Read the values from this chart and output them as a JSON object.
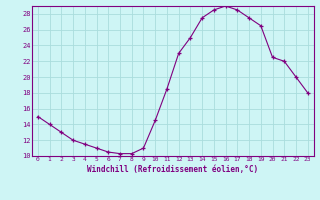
{
  "x": [
    0,
    1,
    2,
    3,
    4,
    5,
    6,
    7,
    8,
    9,
    10,
    11,
    12,
    13,
    14,
    15,
    16,
    17,
    18,
    19,
    20,
    21,
    22,
    23
  ],
  "y": [
    15.0,
    14.0,
    13.0,
    12.0,
    11.5,
    11.0,
    10.5,
    10.3,
    10.3,
    11.0,
    14.5,
    18.5,
    23.0,
    25.0,
    27.5,
    28.5,
    29.0,
    28.5,
    27.5,
    26.5,
    22.5,
    22.0,
    20.0,
    18.0
  ],
  "xlim": [
    -0.5,
    23.5
  ],
  "ylim": [
    10,
    29
  ],
  "yticks": [
    10,
    12,
    14,
    16,
    18,
    20,
    22,
    24,
    26,
    28
  ],
  "xticks": [
    0,
    1,
    2,
    3,
    4,
    5,
    6,
    7,
    8,
    9,
    10,
    11,
    12,
    13,
    14,
    15,
    16,
    17,
    18,
    19,
    20,
    21,
    22,
    23
  ],
  "xlabel": "Windchill (Refroidissement éolien,°C)",
  "line_color": "#800080",
  "marker": "+",
  "bg_color": "#cef5f5",
  "grid_color": "#aadddd",
  "axis_color": "#800080"
}
